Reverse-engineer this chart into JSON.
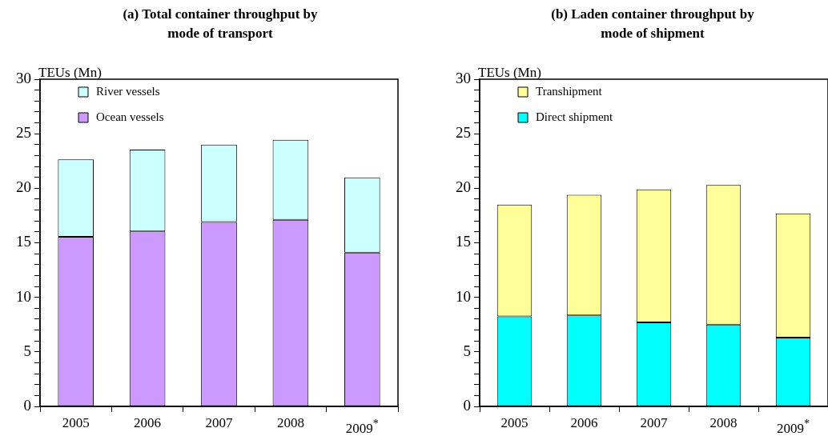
{
  "chart_data": [
    {
      "type": "bar",
      "title": "(a) Total container throughput by mode of transport",
      "ylabel": "TEUs (Mn)",
      "categories": [
        "2005",
        "2006",
        "2007",
        "2008",
        "2009$^{*}$"
      ],
      "stacked": true,
      "legend": "top left",
      "grid": false,
      "ylim": [
        0,
        30
      ],
      "yticks": [
        0,
        {
          "value": 1,
          "label": null
        },
        {
          "value": 2,
          "label": null
        },
        {
          "value": 3,
          "label": null
        },
        {
          "value": 4,
          "label": null
        },
        5,
        {
          "value": 6,
          "label": null
        },
        {
          "value": 7,
          "label": null
        },
        {
          "value": 8,
          "label": null
        },
        {
          "value": 9,
          "label": null
        },
        10,
        {
          "value": 11,
          "label": null
        },
        {
          "value": 12,
          "label": null
        },
        {
          "value": 13,
          "label": null
        },
        {
          "value": 14,
          "label": null
        },
        15,
        {
          "value": 16,
          "label": null
        },
        {
          "value": 17,
          "label": null
        },
        {
          "value": 18,
          "label": null
        },
        {
          "value": 19,
          "label": null
        },
        20,
        {
          "value": 21,
          "label": null
        },
        {
          "value": 22,
          "label": null
        },
        {
          "value": 23,
          "label": null
        },
        {
          "value": 24,
          "label": null
        },
        25,
        {
          "value": 26,
          "label": null
        },
        {
          "value": 27,
          "label": null
        },
        {
          "value": 28,
          "label": null
        },
        {
          "value": 29,
          "label": null
        },
        30
      ],
      "series": [
        {
          "name": "Ocean vessels",
          "color": "#cc99ff",
          "values": [
            15.55,
            16.05,
            16.9,
            17.1,
            14.1
          ]
        },
        {
          "name": "River vessels",
          "color": "#ccffff",
          "values": [
            7.1,
            7.5,
            7.1,
            7.35,
            6.9
          ]
        }
      ]
    },
    {
      "type": "bar",
      "title": "(b) Laden container throughput by mode of shipment",
      "ylabel": "TEUs (Mn)",
      "categories": [
        "2005",
        "2006",
        "2007",
        "2008",
        "2009$^{*}$"
      ],
      "stacked": true,
      "legend": "top left",
      "grid": false,
      "ylim": [
        0,
        30
      ],
      "yticks": [
        0,
        {
          "value": 1,
          "label": null
        },
        {
          "value": 2,
          "label": null
        },
        {
          "value": 3,
          "label": null
        },
        {
          "value": 4,
          "label": null
        },
        5,
        {
          "value": 6,
          "label": null
        },
        {
          "value": 7,
          "label": null
        },
        {
          "value": 8,
          "label": null
        },
        {
          "value": 9,
          "label": null
        },
        10,
        {
          "value": 11,
          "label": null
        },
        {
          "value": 12,
          "label": null
        },
        {
          "value": 13,
          "label": null
        },
        {
          "value": 14,
          "label": null
        },
        15,
        {
          "value": 16,
          "label": null
        },
        {
          "value": 17,
          "label": null
        },
        {
          "value": 18,
          "label": null
        },
        {
          "value": 19,
          "label": null
        },
        20,
        {
          "value": 21,
          "label": null
        },
        {
          "value": 22,
          "label": null
        },
        {
          "value": 23,
          "label": null
        },
        {
          "value": 24,
          "label": null
        },
        25,
        {
          "value": 26,
          "label": null
        },
        {
          "value": 27,
          "label": null
        },
        {
          "value": 28,
          "label": null
        },
        {
          "value": 29,
          "label": null
        },
        30
      ],
      "series": [
        {
          "name": "Direct shipment",
          "color": "#00ffff",
          "values": [
            8.25,
            8.35,
            7.7,
            7.5,
            6.3
          ]
        },
        {
          "name": "Transhipment",
          "color": "#ffff99",
          "values": [
            10.25,
            11.05,
            12.2,
            12.8,
            11.4
          ]
        }
      ]
    }
  ]
}
